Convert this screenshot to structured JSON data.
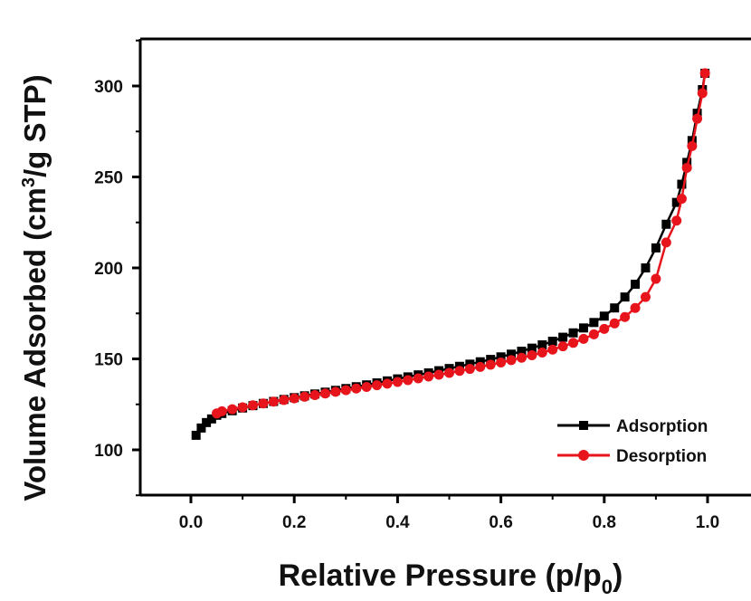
{
  "chart_data": {
    "type": "line",
    "xlabel": "Relative Pressure (p/p0)",
    "xlabel_main": "Relative Pressure (p/p",
    "xlabel_sub": "0",
    "xlabel_end": ")",
    "ylabel": "Volume Adsorbed (cm3/g STP)",
    "ylabel_main": "Volume Adsorbed (cm",
    "ylabel_sup": "3",
    "ylabel_end": "/g  STP)",
    "xlim": [
      -0.1,
      1.1
    ],
    "ylim": [
      75,
      325
    ],
    "xticks": [
      0.0,
      0.2,
      0.4,
      0.6,
      0.8,
      1.0
    ],
    "xtick_labels": [
      "0.0",
      "0.2",
      "0.4",
      "0.6",
      "0.8",
      "1.0"
    ],
    "yticks": [
      100,
      150,
      200,
      250,
      300
    ],
    "ytick_labels": [
      "100",
      "150",
      "200",
      "250",
      "300"
    ],
    "grid": false,
    "legend_position": "bottom-right",
    "series": [
      {
        "name": "Adsorption",
        "color": "#000000",
        "marker": "square",
        "x": [
          0.01,
          0.02,
          0.03,
          0.04,
          0.05,
          0.06,
          0.08,
          0.1,
          0.12,
          0.14,
          0.16,
          0.18,
          0.2,
          0.22,
          0.24,
          0.26,
          0.28,
          0.3,
          0.32,
          0.34,
          0.36,
          0.38,
          0.4,
          0.42,
          0.44,
          0.46,
          0.48,
          0.5,
          0.52,
          0.54,
          0.56,
          0.58,
          0.6,
          0.62,
          0.64,
          0.66,
          0.68,
          0.7,
          0.72,
          0.74,
          0.76,
          0.78,
          0.8,
          0.82,
          0.84,
          0.86,
          0.88,
          0.9,
          0.92,
          0.94,
          0.95,
          0.96,
          0.97,
          0.98,
          0.99,
          0.995
        ],
        "y": [
          108,
          112,
          115,
          117,
          119,
          120,
          121.5,
          123,
          124.3,
          125.5,
          126.6,
          127.7,
          128.7,
          129.7,
          130.7,
          131.7,
          132.7,
          133.7,
          134.7,
          135.7,
          136.8,
          137.9,
          139.0,
          140.1,
          141.2,
          142.3,
          143.5,
          144.7,
          145.9,
          147.1,
          148.4,
          149.7,
          151.1,
          152.6,
          154.2,
          155.9,
          157.7,
          159.7,
          161.9,
          164.3,
          167.0,
          170.0,
          173.5,
          178.0,
          184.0,
          191.0,
          200.0,
          211.0,
          224.0,
          236.0,
          246.0,
          258.0,
          270.0,
          285.0,
          298.0,
          307.0
        ]
      },
      {
        "name": "Desorption",
        "color": "#e8141c",
        "marker": "circle",
        "x": [
          0.995,
          0.99,
          0.98,
          0.97,
          0.96,
          0.95,
          0.94,
          0.92,
          0.9,
          0.88,
          0.86,
          0.84,
          0.82,
          0.8,
          0.78,
          0.76,
          0.74,
          0.72,
          0.7,
          0.68,
          0.66,
          0.64,
          0.62,
          0.6,
          0.58,
          0.56,
          0.54,
          0.52,
          0.5,
          0.48,
          0.46,
          0.44,
          0.42,
          0.4,
          0.38,
          0.36,
          0.34,
          0.32,
          0.3,
          0.28,
          0.26,
          0.24,
          0.22,
          0.2,
          0.18,
          0.16,
          0.14,
          0.12,
          0.1,
          0.08,
          0.06,
          0.05
        ],
        "y": [
          307.0,
          296.0,
          282.0,
          267.0,
          255.0,
          238.0,
          226.0,
          214.0,
          194.0,
          184.0,
          178.0,
          173.0,
          169.5,
          166.5,
          163.5,
          161.0,
          158.8,
          156.9,
          155.1,
          153.5,
          152.0,
          150.6,
          149.3,
          148.0,
          146.8,
          145.6,
          144.5,
          143.4,
          142.3,
          141.3,
          140.3,
          139.3,
          138.3,
          137.3,
          136.4,
          135.5,
          134.6,
          133.7,
          132.8,
          131.9,
          131.0,
          130.1,
          129.2,
          128.3,
          127.4,
          126.5,
          125.5,
          124.5,
          123.4,
          122.3,
          121.2,
          120.0
        ]
      }
    ]
  }
}
